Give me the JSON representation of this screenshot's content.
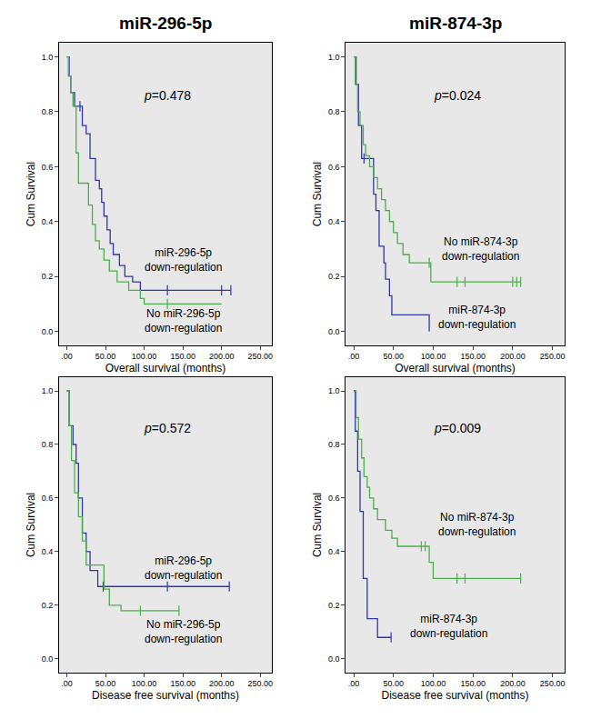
{
  "chart_data": [
    {
      "type": "line",
      "title": "miR-296-5p",
      "x_label": "Overall survival (months)",
      "y_label": "Cum Survival",
      "xlim": [
        -10,
        265
      ],
      "ylim": [
        -0.05,
        1.05
      ],
      "grid": false,
      "xticks": [
        {
          "value": 0,
          "label": ".00"
        },
        {
          "value": 50,
          "label": "50.00"
        },
        {
          "value": 100,
          "label": "100.00"
        },
        {
          "value": 150,
          "label": "150.00"
        },
        {
          "value": 200,
          "label": "200.00"
        },
        {
          "value": 250,
          "label": "250.00"
        }
      ],
      "yticks": [
        {
          "value": 0,
          "label": "0.0"
        },
        {
          "value": 0.2,
          "label": "0.2"
        },
        {
          "value": 0.4,
          "label": "0.4"
        },
        {
          "value": 0.6,
          "label": "0.6"
        },
        {
          "value": 0.8,
          "label": "0.8"
        },
        {
          "value": 1,
          "label": "1.0"
        }
      ],
      "annotations": [
        {
          "text": "p=0.478",
          "x": 130,
          "y": 0.86
        },
        {
          "text": "miR-296-5p\ndown-regulation",
          "x": 150,
          "y": 0.26
        },
        {
          "text": "No miR-296-5p\ndown-regulation",
          "x": 150,
          "y": 0.04
        }
      ],
      "series": [
        {
          "name": "miR-296-5p down-regulation",
          "color": "#3336a8",
          "x": [
            0,
            3,
            5,
            10,
            20,
            25,
            30,
            37,
            42,
            45,
            48,
            52,
            56,
            60,
            68,
            75,
            85,
            95,
            212
          ],
          "values": [
            1,
            0.93,
            0.87,
            0.82,
            0.75,
            0.72,
            0.63,
            0.55,
            0.52,
            0.47,
            0.42,
            0.37,
            0.32,
            0.28,
            0.24,
            0.2,
            0.18,
            0.15,
            0.15
          ],
          "censored_x": [
            17,
            130,
            200,
            212
          ],
          "censored_y": [
            0.82,
            0.15,
            0.15,
            0.15
          ]
        },
        {
          "name": "No miR-296-5p down-regulation",
          "color": "#4cae4c",
          "x": [
            0,
            2,
            5,
            8,
            12,
            15,
            28,
            33,
            37,
            42,
            48,
            55,
            65,
            80,
            95,
            100,
            200
          ],
          "values": [
            1,
            0.93,
            0.87,
            0.82,
            0.65,
            0.54,
            0.46,
            0.39,
            0.33,
            0.3,
            0.26,
            0.22,
            0.18,
            0.15,
            0.12,
            0.1,
            0.1
          ],
          "censored_x": [
            130
          ],
          "censored_y": [
            0.1
          ]
        }
      ]
    },
    {
      "type": "line",
      "title": "miR-874-3p",
      "x_label": "Overall survival (months)",
      "y_label": "Cum Survival",
      "xlim": [
        -10,
        265
      ],
      "ylim": [
        -0.05,
        1.05
      ],
      "grid": false,
      "xticks": [
        {
          "value": 0,
          "label": ".00"
        },
        {
          "value": 50,
          "label": "50.00"
        },
        {
          "value": 100,
          "label": "100.00"
        },
        {
          "value": 150,
          "label": "150.00"
        },
        {
          "value": 200,
          "label": "200.00"
        },
        {
          "value": 250,
          "label": "250.00"
        }
      ],
      "yticks": [
        {
          "value": 0,
          "label": "0.0"
        },
        {
          "value": 0.2,
          "label": "0.2"
        },
        {
          "value": 0.4,
          "label": "0.4"
        },
        {
          "value": 0.6,
          "label": "0.6"
        },
        {
          "value": 0.8,
          "label": "0.8"
        },
        {
          "value": 1,
          "label": "1.0"
        }
      ],
      "annotations": [
        {
          "text": "p=0.024",
          "x": 130,
          "y": 0.86
        },
        {
          "text": "No miR-874-3p\ndown-regulation",
          "x": 160,
          "y": 0.3
        },
        {
          "text": "miR-874-3p\ndown-regulation",
          "x": 155,
          "y": 0.05
        }
      ],
      "series": [
        {
          "name": "miR-874-3p down-regulation",
          "color": "#3336a8",
          "x": [
            0,
            3,
            6,
            10,
            25,
            28,
            32,
            38,
            40,
            45,
            48,
            95
          ],
          "values": [
            1,
            0.9,
            0.75,
            0.63,
            0.5,
            0.44,
            0.31,
            0.25,
            0.19,
            0.13,
            0.06,
            0
          ],
          "censored_x": [
            13
          ],
          "censored_y": [
            0.63
          ]
        },
        {
          "name": "No miR-874-3p down-regulation",
          "color": "#4cae4c",
          "x": [
            0,
            2,
            5,
            8,
            12,
            15,
            20,
            25,
            30,
            35,
            40,
            45,
            50,
            55,
            62,
            70,
            97,
            210
          ],
          "values": [
            1,
            0.9,
            0.8,
            0.75,
            0.68,
            0.64,
            0.6,
            0.56,
            0.52,
            0.48,
            0.44,
            0.4,
            0.36,
            0.32,
            0.28,
            0.25,
            0.18,
            0.18
          ],
          "censored_x": [
            95,
            130,
            140,
            200,
            205,
            210
          ],
          "censored_y": [
            0.25,
            0.18,
            0.18,
            0.18,
            0.18,
            0.18
          ]
        }
      ]
    },
    {
      "type": "line",
      "x_label": "Disease free survival (months)",
      "y_label": "Cum Survival",
      "xlim": [
        -10,
        265
      ],
      "ylim": [
        -0.05,
        1.05
      ],
      "grid": false,
      "xticks": [
        {
          "value": 0,
          "label": ".00"
        },
        {
          "value": 50,
          "label": "50.00"
        },
        {
          "value": 100,
          "label": "100.00"
        },
        {
          "value": 150,
          "label": "150.00"
        },
        {
          "value": 200,
          "label": "200.00"
        },
        {
          "value": 250,
          "label": "250.00"
        }
      ],
      "yticks": [
        {
          "value": 0,
          "label": "0.0"
        },
        {
          "value": 0.2,
          "label": "0.2"
        },
        {
          "value": 0.4,
          "label": "0.4"
        },
        {
          "value": 0.6,
          "label": "0.6"
        },
        {
          "value": 0.8,
          "label": "0.8"
        },
        {
          "value": 1,
          "label": "1.0"
        }
      ],
      "annotations": [
        {
          "text": "p=0.572",
          "x": 130,
          "y": 0.86
        },
        {
          "text": "miR-296-5p\ndown-regulation",
          "x": 150,
          "y": 0.34
        },
        {
          "text": "No miR-296-5p\ndown-regulation",
          "x": 150,
          "y": 0.1
        }
      ],
      "series": [
        {
          "name": "miR-296-5p down-regulation",
          "color": "#3336a8",
          "x": [
            0,
            3,
            8,
            12,
            15,
            20,
            25,
            30,
            40,
            210
          ],
          "values": [
            1,
            0.87,
            0.8,
            0.73,
            0.6,
            0.47,
            0.4,
            0.33,
            0.27,
            0.27
          ],
          "censored_x": [
            47,
            130,
            210
          ],
          "censored_y": [
            0.27,
            0.27,
            0.27
          ]
        },
        {
          "name": "No miR-296-5p down-regulation",
          "color": "#4cae4c",
          "x": [
            0,
            3,
            6,
            10,
            15,
            20,
            25,
            48,
            55,
            70,
            145
          ],
          "values": [
            1,
            0.87,
            0.74,
            0.62,
            0.53,
            0.44,
            0.35,
            0.26,
            0.2,
            0.18,
            0.18
          ],
          "censored_x": [
            95,
            145
          ],
          "censored_y": [
            0.18,
            0.18
          ]
        }
      ]
    },
    {
      "type": "line",
      "x_label": "Disease free survival (months)",
      "y_label": "Cum Survival",
      "xlim": [
        -10,
        265
      ],
      "ylim": [
        -0.05,
        1.05
      ],
      "grid": false,
      "xticks": [
        {
          "value": 0,
          "label": ".00"
        },
        {
          "value": 50,
          "label": "50.00"
        },
        {
          "value": 100,
          "label": "100.00"
        },
        {
          "value": 150,
          "label": "150.00"
        },
        {
          "value": 200,
          "label": "200.00"
        },
        {
          "value": 250,
          "label": "250.00"
        }
      ],
      "yticks": [
        {
          "value": 0,
          "label": "0.0"
        },
        {
          "value": 0.2,
          "label": "0.2"
        },
        {
          "value": 0.4,
          "label": "0.4"
        },
        {
          "value": 0.6,
          "label": "0.6"
        },
        {
          "value": 0.8,
          "label": "0.8"
        },
        {
          "value": 1,
          "label": "1.0"
        }
      ],
      "annotations": [
        {
          "text": "p=0.009",
          "x": 130,
          "y": 0.86
        },
        {
          "text": "No miR-874-3p\ndown-regulation",
          "x": 155,
          "y": 0.5
        },
        {
          "text": "miR-874-3p\ndown-regulation",
          "x": 120,
          "y": 0.12
        }
      ],
      "series": [
        {
          "name": "miR-874-3p down-regulation",
          "color": "#3336a8",
          "x": [
            0,
            2,
            5,
            8,
            12,
            17,
            30,
            47
          ],
          "values": [
            1,
            0.85,
            0.7,
            0.55,
            0.3,
            0.15,
            0.08,
            0.08
          ],
          "censored_x": [
            47
          ],
          "censored_y": [
            0.08
          ]
        },
        {
          "name": "No miR-874-3p down-regulation",
          "color": "#4cae4c",
          "x": [
            0,
            3,
            6,
            10,
            13,
            17,
            20,
            25,
            30,
            40,
            48,
            55,
            95,
            100,
            210
          ],
          "values": [
            1,
            0.9,
            0.82,
            0.75,
            0.68,
            0.64,
            0.6,
            0.56,
            0.52,
            0.48,
            0.45,
            0.42,
            0.36,
            0.3,
            0.3
          ],
          "censored_x": [
            85,
            90,
            130,
            140,
            210
          ],
          "censored_y": [
            0.42,
            0.42,
            0.3,
            0.3,
            0.3
          ]
        }
      ]
    }
  ]
}
